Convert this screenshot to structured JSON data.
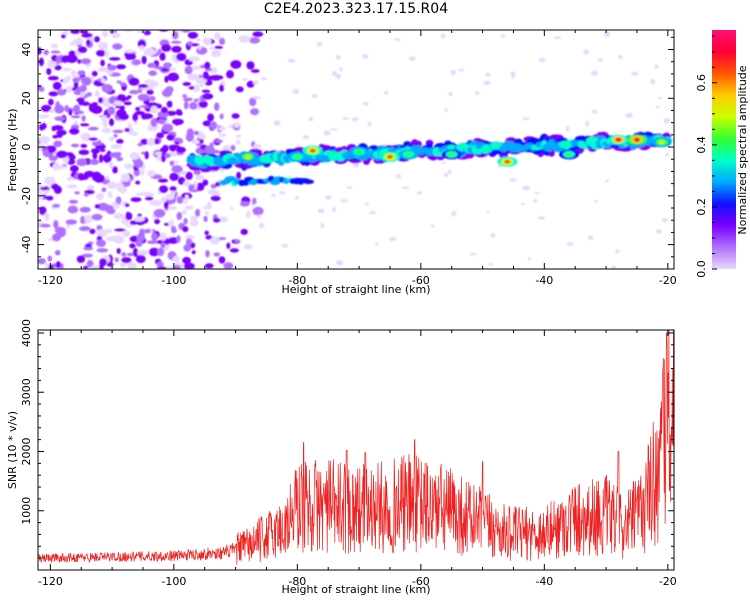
{
  "title": "C2E4.2023.323.17.15.R04",
  "chart_data": [
    {
      "type": "heatmap",
      "xlabel": "Height of straight line (km)",
      "ylabel": "Frequency (Hz)",
      "xlim": [
        -122,
        -19
      ],
      "ylim": [
        -50,
        48
      ],
      "xticks": [
        -120,
        -100,
        -80,
        -60,
        -40,
        -20
      ],
      "yticks": [
        -40,
        -20,
        0,
        20,
        40
      ],
      "colorbar": {
        "label": "Normalized spectral amplitude",
        "range": [
          0,
          0.77
        ],
        "ticks": [
          0.0,
          0.2,
          0.4,
          0.6
        ],
        "colors": [
          "#e8d8ff",
          "#b070ff",
          "#7a00ff",
          "#1010ff",
          "#00a8ff",
          "#00ffc8",
          "#33ff33",
          "#ccff00",
          "#ffcc00",
          "#ff5500",
          "#ff0033",
          "#ff1077"
        ]
      },
      "features": [
        {
          "name": "noise",
          "x_range": [
            -122,
            -92
          ],
          "y_range": [
            -50,
            48
          ],
          "level": 0.05
        },
        {
          "name": "signal-band",
          "x_start": -97,
          "y_start": -6,
          "x_end": -20,
          "y_end": 3,
          "level_peak": 0.72
        },
        {
          "name": "secondary-band",
          "x_start": -92,
          "y_start": -14,
          "x_end": -78,
          "y_end": -14,
          "level": 0.3
        }
      ],
      "peaks": [
        {
          "x": -88,
          "y": -4,
          "level": 0.5
        },
        {
          "x": -80,
          "y": -4,
          "level": 0.45
        },
        {
          "x": -77.5,
          "y": -1.5,
          "level": 0.62
        },
        {
          "x": -70,
          "y": -2,
          "level": 0.45
        },
        {
          "x": -65,
          "y": -4,
          "level": 0.6
        },
        {
          "x": -62,
          "y": -3,
          "level": 0.45
        },
        {
          "x": -55,
          "y": -3,
          "level": 0.4
        },
        {
          "x": -46,
          "y": -6,
          "level": 0.6
        },
        {
          "x": -36,
          "y": -3,
          "level": 0.4
        },
        {
          "x": -28,
          "y": 3,
          "level": 0.68
        },
        {
          "x": -25,
          "y": 3,
          "level": 0.72
        },
        {
          "x": -21,
          "y": 2,
          "level": 0.5
        }
      ]
    },
    {
      "type": "line",
      "xlabel": "Height of straight line (km)",
      "ylabel": "SNR (10 * v/v)",
      "xlim": [
        -122,
        -19
      ],
      "ylim": [
        0,
        4050
      ],
      "xticks": [
        -120,
        -100,
        -80,
        -60,
        -40,
        -20
      ],
      "yticks": [
        1000,
        2000,
        3000,
        4000
      ],
      "series": [
        {
          "color": "#ee2222",
          "profile": [
            [
              -122,
              200
            ],
            [
              -100,
              240
            ],
            [
              -92,
              290
            ],
            [
              -88,
              400
            ],
            [
              -86,
              500
            ],
            [
              -82,
              700
            ],
            [
              -80,
              1050
            ],
            [
              -75,
              1050
            ],
            [
              -68,
              1000
            ],
            [
              -62,
              1100
            ],
            [
              -56,
              1000
            ],
            [
              -52,
              850
            ],
            [
              -46,
              600
            ],
            [
              -40,
              600
            ],
            [
              -35,
              850
            ],
            [
              -30,
              900
            ],
            [
              -27,
              700
            ],
            [
              -24,
              1000
            ],
            [
              -21,
              1800
            ],
            [
              -19.5,
              2800
            ]
          ],
          "spikes": [
            [
              -79,
              2150
            ],
            [
              -72,
              2020
            ],
            [
              -69,
              1980
            ],
            [
              -61,
              2200
            ],
            [
              -50,
              1830
            ],
            [
              -28,
              2000
            ],
            [
              -20.8,
              3380
            ],
            [
              -20.2,
              4000
            ]
          ]
        }
      ]
    }
  ]
}
